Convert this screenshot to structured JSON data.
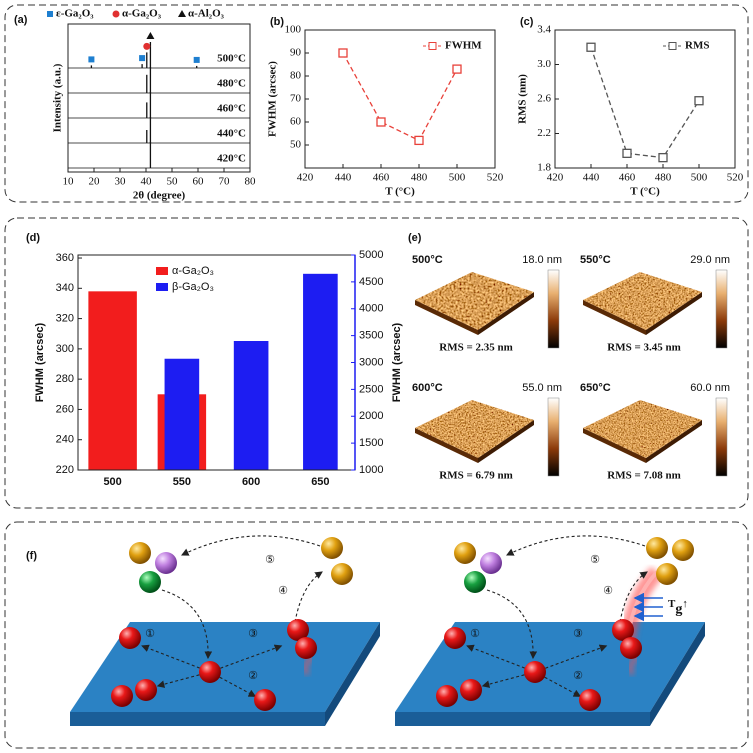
{
  "panel_labels": [
    "(a)",
    "(b)",
    "(c)",
    "(d)",
    "(e)",
    "(f)"
  ],
  "chart_data": [
    {
      "type": "xrd",
      "xlabel": "2θ (degree)",
      "ylabel": "Intensity (a.u.)",
      "xlim": [
        10,
        80
      ],
      "xticks": [
        10,
        20,
        30,
        40,
        50,
        60,
        70,
        80
      ],
      "legend": [
        {
          "name": "ε-Ga₂O₃",
          "color": "#1e7fd0",
          "shape": "square",
          "x": [
            19,
            38.5,
            59.5
          ]
        },
        {
          "name": "α-Ga₂O₃",
          "color": "#e03030",
          "shape": "circle",
          "x": [
            40.3
          ]
        },
        {
          "name": "α-Al₂O₃",
          "color": "#111111",
          "shape": "triangle",
          "x": [
            41.7
          ]
        }
      ],
      "series": [
        {
          "name": "500°C",
          "x": [
            19,
            38.5,
            40.3,
            41.7,
            59.5
          ],
          "values": [
            0.1,
            0.15,
            0.6,
            1,
            0.08
          ]
        },
        {
          "name": "480°C",
          "x": [
            40.3,
            41.7
          ],
          "values": [
            0.7,
            1
          ]
        },
        {
          "name": "460°C",
          "x": [
            40.3,
            41.7
          ],
          "values": [
            0.6,
            1
          ]
        },
        {
          "name": "440°C",
          "x": [
            40.3,
            41.7
          ],
          "values": [
            0.5,
            1
          ]
        },
        {
          "name": "420°C",
          "x": [
            41.7
          ],
          "values": [
            1
          ]
        }
      ]
    },
    {
      "type": "line",
      "xlabel": "T (°C)",
      "ylabel": "FWHM (arcsec)",
      "x": [
        440,
        460,
        480,
        500
      ],
      "series": [
        {
          "name": "FWHM",
          "color": "#e8413a",
          "values": [
            90,
            60,
            52,
            83
          ]
        }
      ],
      "xlim": [
        420,
        520
      ],
      "xticks": [
        420,
        440,
        460,
        480,
        500,
        520
      ],
      "ylim": [
        40,
        100
      ],
      "yticks": [
        50,
        60,
        70,
        80,
        90,
        100
      ],
      "legend": "upper right"
    },
    {
      "type": "line",
      "xlabel": "T (°C)",
      "ylabel": "RMS (nm)",
      "x": [
        440,
        460,
        480,
        500
      ],
      "series": [
        {
          "name": "RMS",
          "color": "#555555",
          "values": [
            3.2,
            1.97,
            1.92,
            2.58
          ]
        }
      ],
      "xlim": [
        420,
        520
      ],
      "xticks": [
        420,
        440,
        460,
        480,
        500,
        520
      ],
      "ylim": [
        1.8,
        3.4
      ],
      "yticks": [
        1.8,
        2.2,
        2.6,
        {
          "value": 3,
          "label": "3.0"
        },
        3.4
      ],
      "legend": "upper right"
    },
    {
      "type": "bar",
      "ylabel": "FWHM (arcsec)",
      "y2label": "FWHM (arcsec)",
      "categories": [
        "500",
        "550",
        "600",
        "650"
      ],
      "series": [
        {
          "name": "α-Ga₂O₃",
          "color": "#f21d1d",
          "values": [
            338,
            270,
            null,
            null
          ]
        },
        {
          "name": "β-Ga₂O₃",
          "color": "#1d1df2",
          "axis": "y2",
          "values": [
            null,
            3070,
            3400,
            4650
          ]
        }
      ],
      "ylim": [
        220,
        362
      ],
      "yticks": [
        220,
        240,
        260,
        280,
        300,
        320,
        340,
        360
      ],
      "y2lim": [
        1000,
        5000
      ],
      "y2ticks": [
        1000,
        1500,
        2000,
        2500,
        3000,
        3500,
        4000,
        4500,
        5000
      ]
    }
  ],
  "afm": {
    "images": [
      {
        "temp": "500°C",
        "scale": "18.0 nm",
        "rms": "RMS = 2.35 nm"
      },
      {
        "temp": "550°C",
        "scale": "29.0 nm",
        "rms": "RMS = 3.45 nm"
      },
      {
        "temp": "600°C",
        "scale": "55.0 nm",
        "rms": "RMS = 6.79 nm"
      },
      {
        "temp": "650°C",
        "scale": "60.0 nm",
        "rms": "RMS = 7.08 nm"
      }
    ]
  },
  "schematic": {
    "steps": [
      "①",
      "②",
      "③",
      "④",
      "⑤"
    ],
    "tg": {
      "main": "T",
      "sub": "g",
      "arrow": "↑"
    }
  }
}
